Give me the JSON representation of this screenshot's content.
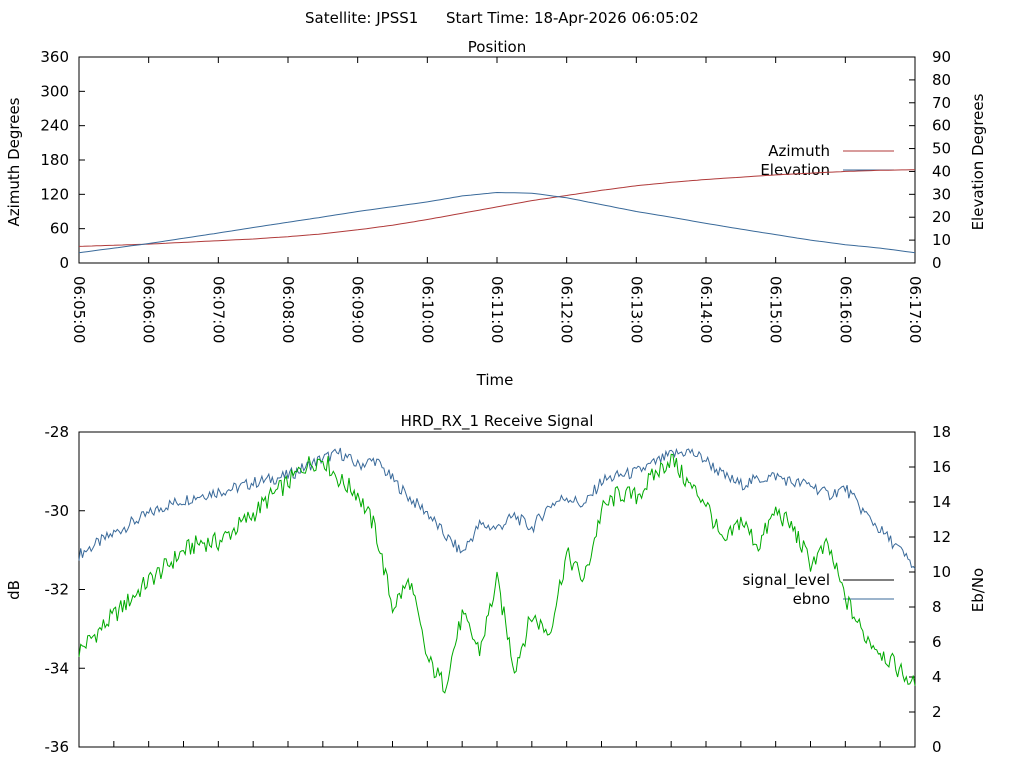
{
  "header": {
    "satellite_label": "Satellite: JPSS1",
    "start_label": "Start Time: 18-Apr-2026 06:05:02"
  },
  "colors": {
    "azimuth": "#b03a3a",
    "elevation": "#3a6a9a",
    "ebno_line": "#3a6a9a",
    "green_trace": "#00aa00",
    "signal_level_key": "#000000",
    "axes": "#000000"
  },
  "chart_data": [
    {
      "type": "line",
      "title": "Position",
      "xlabel": "Time",
      "ylabel": "Azimuth Degrees",
      "y2label": "Elevation Degrees",
      "x_ticks": [
        "06:05:00",
        "06:06:00",
        "06:07:00",
        "06:08:00",
        "06:09:00",
        "06:10:00",
        "06:11:00",
        "06:12:00",
        "06:13:00",
        "06:14:00",
        "06:15:00",
        "06:16:00",
        "06:17:00"
      ],
      "xlim": [
        0,
        12
      ],
      "ylim": [
        0,
        360
      ],
      "y_ticks": [
        0,
        60,
        120,
        180,
        240,
        300,
        360
      ],
      "y2lim": [
        0,
        90
      ],
      "y2_ticks": [
        0,
        10,
        20,
        30,
        40,
        50,
        60,
        70,
        80,
        90
      ],
      "legend_position": "right",
      "series": [
        {
          "name": "Azimuth",
          "axis": "left",
          "x": [
            0,
            0.5,
            1,
            1.5,
            2,
            2.5,
            3,
            3.5,
            4,
            4.5,
            5,
            5.5,
            6,
            6.5,
            7,
            7.5,
            8,
            8.5,
            9,
            9.5,
            10,
            10.5,
            11,
            11.5,
            12
          ],
          "values": [
            29,
            31,
            33,
            36,
            39,
            42,
            46,
            51,
            58,
            66,
            76,
            87,
            98,
            109,
            118,
            127,
            135,
            141,
            146,
            150,
            154,
            157,
            160,
            162,
            163
          ]
        },
        {
          "name": "Elevation",
          "axis": "right",
          "x": [
            0,
            0.5,
            1,
            1.5,
            2,
            2.5,
            3,
            3.5,
            4,
            4.5,
            5,
            5.5,
            6,
            6.5,
            7,
            7.5,
            8,
            8.5,
            9,
            9.5,
            10,
            10.5,
            11,
            11.5,
            12
          ],
          "values": [
            4.5,
            6.5,
            8.5,
            10.8,
            13.1,
            15.5,
            17.8,
            20.1,
            22.5,
            24.6,
            26.7,
            29.3,
            30.8,
            30.5,
            28.5,
            25.5,
            22.5,
            20.0,
            17.3,
            14.8,
            12.4,
            10.0,
            8.0,
            6.5,
            4.5
          ]
        }
      ]
    },
    {
      "type": "line",
      "title": "HRD_RX_1 Receive Signal",
      "ylabel": "dB",
      "y2label": "Eb/No",
      "xlim": [
        0,
        12
      ],
      "x_minor_ticks": 24,
      "ylim": [
        -36,
        -28
      ],
      "y_ticks": [
        -36,
        -34,
        -32,
        -30,
        -28
      ],
      "y2lim": [
        0,
        18
      ],
      "y2_ticks": [
        0,
        2,
        4,
        6,
        8,
        10,
        12,
        14,
        16,
        18
      ],
      "legend_position": "right",
      "legend_entries": [
        "signal_level",
        "ebno"
      ],
      "series": [
        {
          "name": "ebno",
          "axis": "right",
          "x": [
            0,
            0.25,
            0.5,
            0.75,
            1,
            1.25,
            1.5,
            1.75,
            2,
            2.25,
            2.5,
            2.75,
            3,
            3.25,
            3.5,
            3.75,
            4,
            4.25,
            4.5,
            4.75,
            5,
            5.25,
            5.5,
            5.75,
            6,
            6.25,
            6.5,
            6.75,
            7,
            7.25,
            7.5,
            7.75,
            8,
            8.25,
            8.5,
            8.75,
            9,
            9.25,
            9.5,
            9.75,
            10,
            10.25,
            10.5,
            10.75,
            11,
            11.25,
            11.5,
            11.75,
            12
          ],
          "values": [
            11,
            11.6,
            12.2,
            12.8,
            13.3,
            13.8,
            14.1,
            14.4,
            14.6,
            14.8,
            15.1,
            15.3,
            15.5,
            16,
            16.5,
            16.8,
            16.1,
            16.4,
            15.3,
            14.2,
            13.4,
            12.1,
            11.1,
            12.7,
            12.5,
            13.2,
            12.5,
            13.8,
            14.3,
            13.8,
            15.2,
            15.5,
            15.7,
            16.2,
            16.7,
            16.9,
            16.4,
            15.5,
            15.0,
            15.3,
            15.5,
            15.1,
            15.0,
            14.4,
            14.8,
            13.5,
            12.4,
            11.4,
            10.2
          ]
        },
        {
          "name": "",
          "axis": "right",
          "x": [
            0,
            0.25,
            0.5,
            0.75,
            1,
            1.25,
            1.5,
            1.75,
            2,
            2.25,
            2.5,
            2.75,
            3,
            3.25,
            3.5,
            3.75,
            4,
            4.25,
            4.5,
            4.75,
            5,
            5.25,
            5.5,
            5.75,
            6,
            6.25,
            6.5,
            6.75,
            7,
            7.25,
            7.5,
            7.75,
            8,
            8.25,
            8.5,
            8.75,
            9,
            9.25,
            9.5,
            9.75,
            10,
            10.25,
            10.5,
            10.75,
            11,
            11.25,
            11.5,
            11.75,
            12
          ],
          "values": [
            5.5,
            6.5,
            7.5,
            8.5,
            9.5,
            10.3,
            11.2,
            11.7,
            11.7,
            12.5,
            13.3,
            14.3,
            15.1,
            16.1,
            16.5,
            15.2,
            14.5,
            12.5,
            8,
            9.5,
            5,
            3.5,
            7.5,
            5.5,
            9.5,
            4.5,
            7.5,
            6.5,
            11,
            9.5,
            13.5,
            14.5,
            14.3,
            15.5,
            16.5,
            15.0,
            14.0,
            11.5,
            13.0,
            11.5,
            13.5,
            12.5,
            10.5,
            11.5,
            8.5,
            6.5,
            5.5,
            4.5,
            3.5
          ]
        }
      ]
    }
  ]
}
